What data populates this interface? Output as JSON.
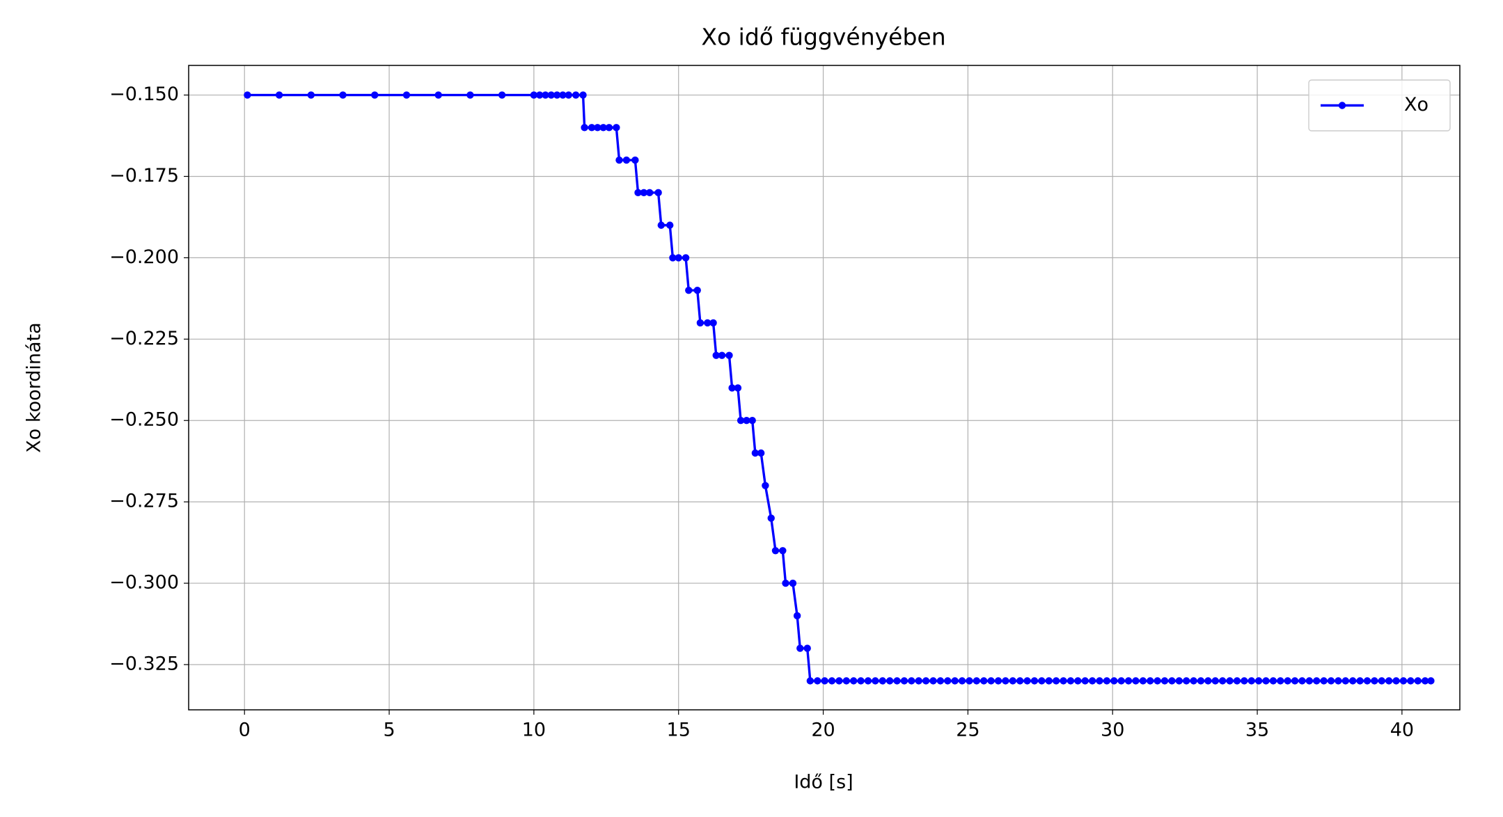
{
  "chart_data": {
    "type": "line",
    "title": "Xo idő függvényében",
    "x_label": "Idő [s]",
    "y_label": "Xo koordináta",
    "xlim": [
      -1.93,
      42.0
    ],
    "ylim": [
      -0.3389,
      -0.1409
    ],
    "xticks": [
      0,
      5,
      10,
      15,
      20,
      25,
      30,
      35,
      40
    ],
    "yticks": [
      {
        "value": -0.15,
        "label": "−0.150"
      },
      {
        "value": -0.175,
        "label": "−0.175"
      },
      {
        "value": -0.2,
        "label": "−0.200"
      },
      {
        "value": -0.225,
        "label": "−0.225"
      },
      {
        "value": -0.25,
        "label": "−0.250"
      },
      {
        "value": -0.275,
        "label": "−0.275"
      },
      {
        "value": -0.3,
        "label": "−0.300"
      },
      {
        "value": -0.325,
        "label": "−0.325"
      }
    ],
    "grid": true,
    "legend": "upper right",
    "x": [
      0.1,
      1.2,
      2.3,
      3.4,
      4.5,
      5.6,
      6.7,
      7.8,
      8.9,
      10.0,
      10.2,
      10.4,
      10.6,
      10.8,
      11.0,
      11.2,
      11.45,
      11.7,
      11.75,
      12.0,
      12.2,
      12.4,
      12.6,
      12.85,
      12.95,
      13.2,
      13.5,
      13.6,
      13.8,
      14.0,
      14.3,
      14.4,
      14.7,
      14.8,
      15.0,
      15.25,
      15.35,
      15.65,
      15.75,
      16.0,
      16.2,
      16.3,
      16.5,
      16.75,
      16.85,
      17.05,
      17.15,
      17.35,
      17.55,
      17.65,
      17.85,
      18.0,
      18.2,
      18.35,
      18.6,
      18.7,
      18.95,
      19.1,
      19.2,
      19.45,
      19.55,
      19.8,
      20.05,
      20.3,
      20.55,
      20.8,
      21.05,
      21.3,
      21.55,
      21.8,
      22.05,
      22.3,
      22.55,
      22.8,
      23.05,
      23.3,
      23.55,
      23.8,
      24.05,
      24.3,
      24.55,
      24.8,
      25.05,
      25.3,
      25.55,
      25.8,
      26.05,
      26.3,
      26.55,
      26.8,
      27.05,
      27.3,
      27.55,
      27.8,
      28.05,
      28.3,
      28.55,
      28.8,
      29.05,
      29.3,
      29.55,
      29.8,
      30.05,
      30.3,
      30.55,
      30.8,
      31.05,
      31.3,
      31.55,
      31.8,
      32.05,
      32.3,
      32.55,
      32.8,
      33.05,
      33.3,
      33.55,
      33.8,
      34.05,
      34.3,
      34.55,
      34.8,
      35.05,
      35.3,
      35.55,
      35.8,
      36.05,
      36.3,
      36.55,
      36.8,
      37.05,
      37.3,
      37.55,
      37.8,
      38.05,
      38.3,
      38.55,
      38.8,
      39.05,
      39.3,
      39.55,
      39.8,
      40.05,
      40.3,
      40.55,
      40.8,
      41.0
    ],
    "series": [
      {
        "name": "Xo",
        "color": "#0000ff",
        "values": [
          -0.15,
          -0.15,
          -0.15,
          -0.15,
          -0.15,
          -0.15,
          -0.15,
          -0.15,
          -0.15,
          -0.15,
          -0.15,
          -0.15,
          -0.15,
          -0.15,
          -0.15,
          -0.15,
          -0.15,
          -0.15,
          -0.16,
          -0.16,
          -0.16,
          -0.16,
          -0.16,
          -0.16,
          -0.17,
          -0.17,
          -0.17,
          -0.18,
          -0.18,
          -0.18,
          -0.18,
          -0.19,
          -0.19,
          -0.2,
          -0.2,
          -0.2,
          -0.21,
          -0.21,
          -0.22,
          -0.22,
          -0.22,
          -0.23,
          -0.23,
          -0.23,
          -0.24,
          -0.24,
          -0.25,
          -0.25,
          -0.25,
          -0.26,
          -0.26,
          -0.27,
          -0.28,
          -0.29,
          -0.29,
          -0.3,
          -0.3,
          -0.31,
          -0.32,
          -0.32,
          -0.33,
          -0.33,
          -0.33,
          -0.33,
          -0.33,
          -0.33,
          -0.33,
          -0.33,
          -0.33,
          -0.33,
          -0.33,
          -0.33,
          -0.33,
          -0.33,
          -0.33,
          -0.33,
          -0.33,
          -0.33,
          -0.33,
          -0.33,
          -0.33,
          -0.33,
          -0.33,
          -0.33,
          -0.33,
          -0.33,
          -0.33,
          -0.33,
          -0.33,
          -0.33,
          -0.33,
          -0.33,
          -0.33,
          -0.33,
          -0.33,
          -0.33,
          -0.33,
          -0.33,
          -0.33,
          -0.33,
          -0.33,
          -0.33,
          -0.33,
          -0.33,
          -0.33,
          -0.33,
          -0.33,
          -0.33,
          -0.33,
          -0.33,
          -0.33,
          -0.33,
          -0.33,
          -0.33,
          -0.33,
          -0.33,
          -0.33,
          -0.33,
          -0.33,
          -0.33,
          -0.33,
          -0.33,
          -0.33,
          -0.33,
          -0.33,
          -0.33,
          -0.33,
          -0.33,
          -0.33,
          -0.33,
          -0.33,
          -0.33,
          -0.33,
          -0.33,
          -0.33,
          -0.33,
          -0.33,
          -0.33,
          -0.33,
          -0.33,
          -0.33,
          -0.33,
          -0.33,
          -0.33,
          -0.33,
          -0.33,
          -0.33
        ]
      }
    ]
  }
}
